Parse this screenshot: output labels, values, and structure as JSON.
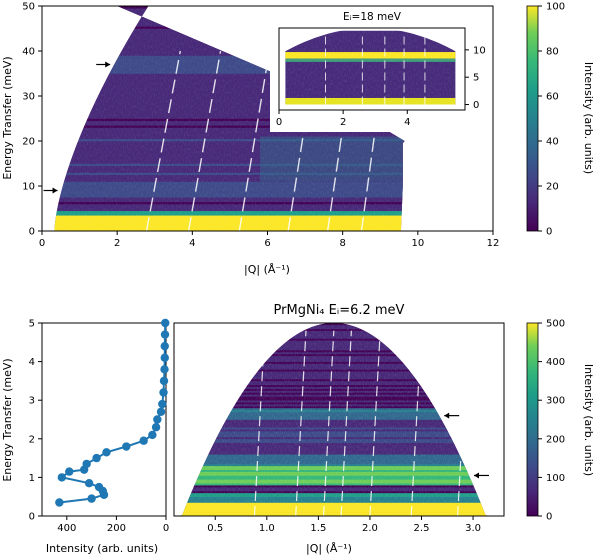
{
  "chart_data": [
    {
      "type": "heatmap",
      "title": "",
      "xlabel": "|Q| (Å⁻¹)",
      "ylabel": "Energy Transfer (meV)",
      "xlim": [
        0,
        12
      ],
      "ylim": [
        0,
        50
      ],
      "x_ticks": [
        "0",
        "2",
        "4",
        "6",
        "8",
        "10",
        "12"
      ],
      "y_ticks": [
        "0",
        "10",
        "20",
        "30",
        "40",
        "50"
      ],
      "colorbar": {
        "label": "Intensity (arb. units)",
        "range": [
          0,
          100
        ],
        "ticks": [
          "0",
          "20",
          "40",
          "60",
          "80",
          "100"
        ]
      },
      "features_meV": [
        3.5,
        9,
        37
      ],
      "arrows_meV": [
        9,
        37
      ],
      "inset": {
        "label": "Eᵢ=18 meV",
        "xlim": [
          0,
          5.8
        ],
        "ylim": [
          -1,
          14
        ],
        "x_ticks": [
          "0",
          "2",
          "4"
        ],
        "y_ticks": [
          "0",
          "5",
          "10"
        ],
        "features_meV": [
          0.5,
          9
        ]
      }
    },
    {
      "type": "line",
      "title": "",
      "xlabel": "Intensity (arb. units)",
      "ylabel": "Energy Transfer (meV)",
      "xlim": [
        500,
        0
      ],
      "ylim": [
        0,
        5
      ],
      "x_ticks": [
        "400",
        "200",
        "0"
      ],
      "y_ticks": [
        "0",
        "1",
        "2",
        "3",
        "4",
        "5"
      ],
      "series": [
        {
          "x": [
            430,
            300,
            250,
            255,
            270,
            310,
            420,
            390,
            330,
            320,
            280,
            240,
            160,
            90,
            55,
            40,
            35,
            20,
            15,
            10,
            8,
            6,
            5,
            5,
            4,
            3
          ],
          "y": [
            0.35,
            0.45,
            0.55,
            0.65,
            0.75,
            0.85,
            1.0,
            1.15,
            1.2,
            1.35,
            1.5,
            1.65,
            1.8,
            1.95,
            2.1,
            2.3,
            2.5,
            2.7,
            2.9,
            3.2,
            3.5,
            3.8,
            4.1,
            4.4,
            4.7,
            5.0
          ]
        }
      ]
    },
    {
      "type": "heatmap",
      "title": "PrMgNi₄ Eᵢ=6.2 meV",
      "xlabel": "|Q| (Å⁻¹)",
      "ylabel": "",
      "xlim": [
        0.1,
        3.3
      ],
      "ylim": [
        0,
        5
      ],
      "x_ticks": [
        "0.5",
        "1.0",
        "1.5",
        "2.0",
        "2.5",
        "3.0"
      ],
      "colorbar": {
        "label": "Intensity (arb. units)",
        "range": [
          0,
          500
        ],
        "ticks": [
          "0",
          "100",
          "200",
          "300",
          "400",
          "500"
        ]
      },
      "features_meV": [
        0.3,
        1.05,
        2.6
      ],
      "arrows_meV": [
        1.05,
        2.6
      ]
    }
  ]
}
